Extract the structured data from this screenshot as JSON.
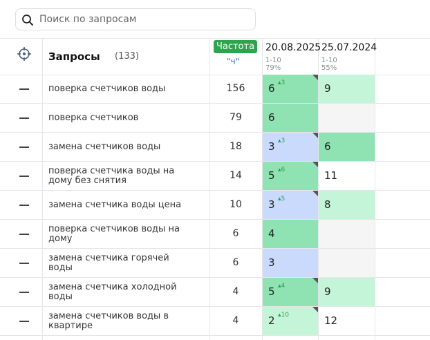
{
  "search": {
    "placeholder": "Поиск по запросам",
    "value": ""
  },
  "header": {
    "queries_title": "Запросы",
    "queries_count": "(133)",
    "frequency_badge": "Частота",
    "frequency_sub": "\"ч\"",
    "dates": [
      {
        "date": "20.08.2025",
        "range": "1-10",
        "percent": "79%"
      },
      {
        "date": "25.07.2024",
        "range": "1-10",
        "percent": "55%"
      }
    ]
  },
  "rows": [
    {
      "query": "поверка счетчиков воды",
      "freq": "156",
      "p1": "6",
      "d1": "▴3",
      "p2": "9"
    },
    {
      "query": "поверка счетчиков",
      "freq": "79",
      "p1": "6",
      "d1": "",
      "p2": ""
    },
    {
      "query": "замена счетчиков воды",
      "freq": "18",
      "p1": "3",
      "d1": "▴3",
      "p2": "6"
    },
    {
      "query": "поверка счетчика воды на дому без снятия",
      "freq": "14",
      "p1": "5",
      "d1": "▴6",
      "p2": "11"
    },
    {
      "query": "замена счетчика воды цена",
      "freq": "10",
      "p1": "3",
      "d1": "▴5",
      "p2": "8"
    },
    {
      "query": "поверка счетчиков воды на дому",
      "freq": "6",
      "p1": "4",
      "d1": "",
      "p2": ""
    },
    {
      "query": "замена счетчика горячей воды",
      "freq": "6",
      "p1": "3",
      "d1": "",
      "p2": ""
    },
    {
      "query": "замена счетчика холодной воды",
      "freq": "4",
      "p1": "5",
      "d1": "▴4",
      "p2": "9"
    },
    {
      "query": "замена счетчиков воды в квартире",
      "freq": "4",
      "p1": "2",
      "d1": "▴10",
      "p2": "12"
    }
  ],
  "colors": {
    "badge": "#2ea44f",
    "position_top": "#8fe3b3",
    "position_good": "#c5f5d8",
    "position_mid": "#c9dafc",
    "delta_up": "#2a9d52"
  },
  "icons": {
    "search": "search-icon",
    "target": "target-icon",
    "row_toggle": "minus-icon"
  }
}
